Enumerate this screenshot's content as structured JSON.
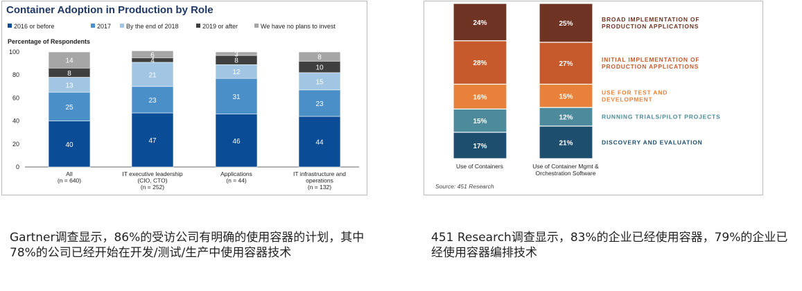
{
  "chart_data": [
    {
      "type": "bar",
      "stacked": true,
      "title": "Container Adoption in Production by Role",
      "ylabel": "Percentage of Respondents",
      "ylim": [
        0,
        100
      ],
      "yticks": [
        "0",
        "20",
        "40",
        "60",
        "80",
        "100"
      ],
      "legend_position": "top",
      "categories": [
        [
          "All",
          "(n = 640)"
        ],
        [
          "IT executive leadership",
          "(CIO, CTO)",
          "(n = 252)"
        ],
        [
          "Applications",
          "(n = 44)"
        ],
        [
          "IT infrastructure and",
          "operations",
          "(n = 132)"
        ]
      ],
      "series": [
        {
          "name": "2016 or before",
          "color": "#0a4c96",
          "values": [
            40,
            47,
            46,
            44
          ]
        },
        {
          "name": "2017",
          "color": "#4a8fc7",
          "values": [
            25,
            23,
            31,
            23
          ]
        },
        {
          "name": "By the end of 2018",
          "color": "#a3c5e4",
          "values": [
            13,
            21,
            12,
            15
          ]
        },
        {
          "name": "2019 or after",
          "color": "#3f3f3f",
          "values": [
            8,
            4,
            8,
            10
          ]
        },
        {
          "name": "We have no plans to invest",
          "color": "#a6a6a6",
          "values": [
            14,
            6,
            3,
            8
          ]
        }
      ]
    },
    {
      "type": "bar",
      "stacked": true,
      "categories": [
        "Use of Containers",
        [
          "Use of Container Mgmt &",
          "Orchestration Software"
        ]
      ],
      "source": "Source: 451 Research",
      "series": [
        {
          "name": "DISCOVERY AND EVALUATION",
          "color": "#1d4e6e",
          "values": [
            17,
            21
          ]
        },
        {
          "name": "RUNNING TRIALS/PILOT PROJECTS",
          "color": "#4d8a9c",
          "values": [
            15,
            12
          ]
        },
        {
          "name": "USE FOR TEST AND DEVELOPMENT",
          "color": "#e8823a",
          "values": [
            16,
            15
          ]
        },
        {
          "name": "INITIAL IMPLEMENTATION OF PRODUCTION APPLICATIONS",
          "color": "#c75a2c",
          "values": [
            28,
            27
          ]
        },
        {
          "name": "BROAD IMPLEMENTATION OF PRODUCTION APPLICATIONS",
          "color": "#6e3322",
          "values": [
            24,
            25
          ]
        }
      ],
      "label_lines": [
        [
          "DISCOVERY AND EVALUATION"
        ],
        [
          "RUNNING TRIALS/PILOT PROJECTS"
        ],
        [
          "USE FOR TEST AND",
          "DEVELOPMENT"
        ],
        [
          "INITIAL IMPLEMENTATION OF",
          "PRODUCTION APPLICATIONS"
        ],
        [
          "BROAD IMPLEMENTATION OF",
          "PRODUCTION APPLICATIONS"
        ]
      ]
    }
  ],
  "captions": {
    "left": "Gartner调查显示，86%的受访公司有明确的使用容器的计划，其中78%的公司已经开始在开发/测试/生产中使用容器技术",
    "right": "451 Research调查显示，83%的企业已经使用容器，79%的企业已经使用容器编排技术"
  }
}
